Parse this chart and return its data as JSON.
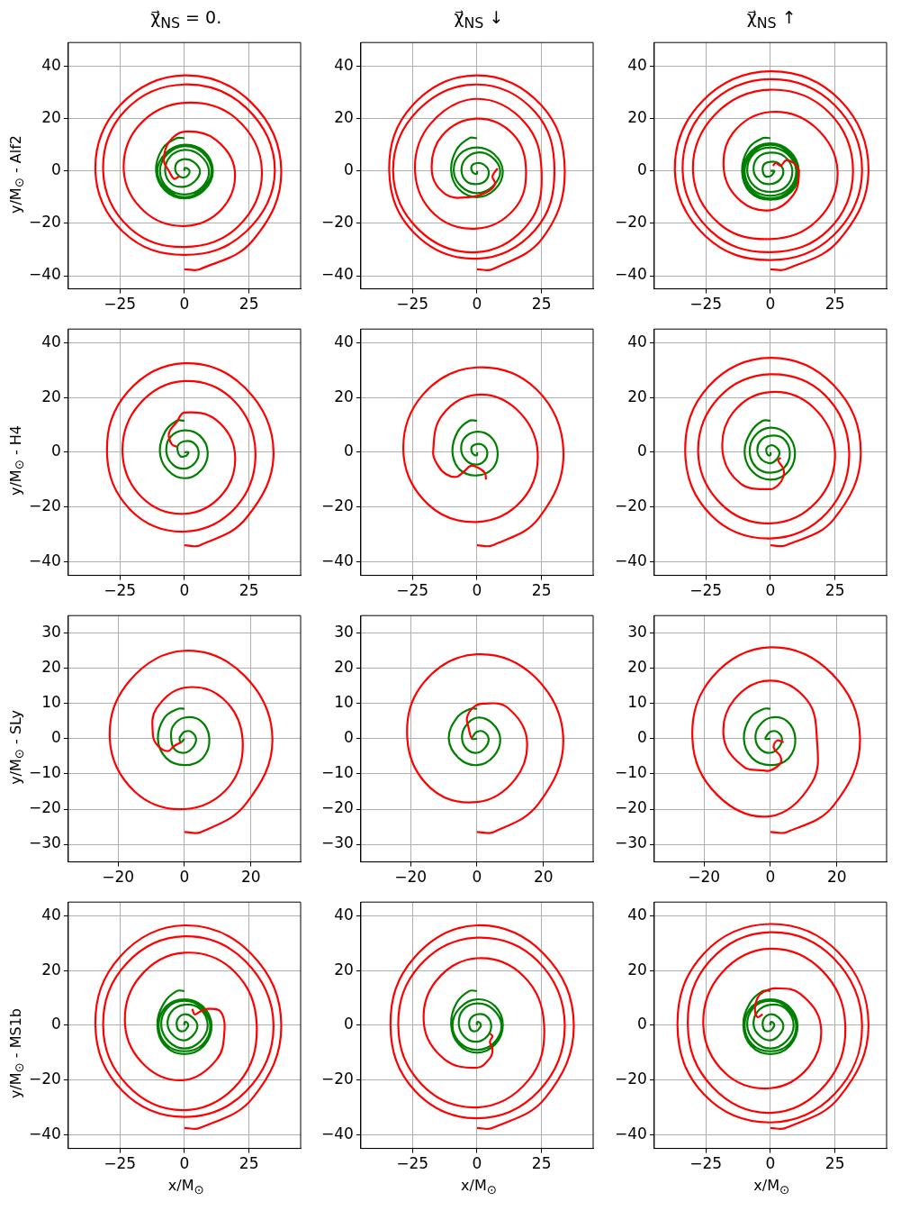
{
  "chart_data": [
    {
      "type": "line",
      "title": "χ⃗$_{NS}$ = 0.",
      "ylabel": "y/M$_{⊙}$ - Alf2",
      "xlim": [
        -45,
        45
      ],
      "ylim": [
        -45,
        49
      ],
      "xticks": [
        -25,
        0,
        25
      ],
      "yticks": [
        -40,
        -20,
        0,
        20,
        40
      ],
      "grid": true,
      "series": [
        {
          "color": "#ff0000",
          "x": [
            0,
            6,
            26.5,
            37.5,
            26,
            0,
            -25,
            -34.5,
            -23.5,
            0,
            23.5,
            35,
            24,
            0,
            -23,
            -31.5,
            -21.5,
            0,
            21,
            30,
            20,
            0,
            -17.5,
            -23.5,
            -15.5,
            0,
            14.5,
            19.5,
            12,
            0,
            -6,
            -8,
            -6,
            -4,
            -2
          ],
          "values": [
            -37.5,
            -37.5,
            -26.5,
            0,
            26,
            36.5,
            25,
            0,
            -23.5,
            -32,
            -23.5,
            0,
            24,
            33,
            23,
            0,
            -21.5,
            -29,
            -21,
            0,
            20,
            26,
            17.5,
            0,
            -15.5,
            -21,
            -14.5,
            0,
            12,
            15,
            11,
            4,
            0,
            -3,
            -2
          ]
        },
        {
          "color": "#008000",
          "x": [
            0,
            -3,
            -8.5,
            -11,
            -7.5,
            0,
            7.5,
            11,
            7.5,
            0,
            -7,
            -10.5,
            -7,
            0,
            7,
            10.5,
            7,
            0,
            -6.5,
            -9.5,
            -6.5,
            0,
            6.5,
            9.5,
            6,
            0,
            -5.5,
            -7.5,
            -5,
            0,
            4,
            6,
            3.5,
            0,
            -3,
            -3.5,
            -2,
            0,
            1.5,
            2,
            1,
            0,
            0
          ],
          "values": [
            12.5,
            12.5,
            8.5,
            0,
            -7.5,
            -10.5,
            -7.5,
            0,
            7.5,
            10,
            7,
            0,
            -7,
            -10,
            -7,
            0,
            7,
            9.5,
            6.5,
            0,
            -6.5,
            -9,
            -6.5,
            0,
            6,
            8,
            5.5,
            0,
            -5,
            -6,
            -4,
            0,
            3.5,
            4.5,
            3,
            0,
            -2,
            -2.5,
            -1.5,
            0,
            1,
            1,
            0
          ]
        }
      ]
    },
    {
      "type": "line",
      "title": "χ⃗$_{NS}$ ↓",
      "xlim": [
        -45,
        45
      ],
      "ylim": [
        -45,
        49
      ],
      "xticks": [
        -25,
        0,
        25
      ],
      "yticks": [
        -40,
        -20,
        0,
        20,
        40
      ],
      "grid": true,
      "series": [
        {
          "color": "#ff0000",
          "x": [
            0,
            6,
            25.5,
            34,
            25,
            0,
            -25,
            -34,
            -24,
            0,
            22.5,
            30,
            22.5,
            0,
            -23,
            -32.5,
            -22.5,
            0,
            20,
            25,
            18.5,
            0,
            -18,
            -24,
            -16.5,
            0,
            14.5,
            19,
            14,
            0,
            -13.5,
            -17.5,
            -12,
            -3,
            4,
            7,
            6,
            8
          ],
          "values": [
            -37.5,
            -37.5,
            -25.5,
            0,
            25,
            36.5,
            25,
            0,
            -24,
            -33.5,
            -22.5,
            0,
            22.5,
            33,
            23,
            0,
            -22.5,
            -31,
            -20,
            0,
            18.5,
            27.5,
            18,
            0,
            -16.5,
            -22,
            -14.5,
            0,
            14,
            20,
            13.5,
            0,
            -9,
            -10,
            -8,
            -5,
            -2,
            1
          ]
        },
        {
          "color": "#008000",
          "x": [
            0,
            -3,
            -8,
            -10,
            -7,
            0,
            7,
            10,
            6.5,
            0,
            -6.5,
            -9,
            -6,
            0,
            6,
            9,
            5.5,
            0,
            -4.5,
            -6,
            -4,
            0,
            3.5,
            4.5,
            2.5,
            0,
            -2,
            -2,
            -1,
            0,
            0
          ],
          "values": [
            12.5,
            12.5,
            8,
            0,
            -7,
            -10,
            -7,
            0,
            6.5,
            9,
            6.5,
            0,
            -6,
            -8.5,
            -6,
            0,
            5.5,
            7,
            4.5,
            0,
            -4,
            -5,
            -3.5,
            0,
            2.5,
            3,
            2,
            0,
            -1,
            -1,
            0
          ]
        }
      ]
    },
    {
      "type": "line",
      "title": "χ⃗$_{NS}$ ↑",
      "xlim": [
        -45,
        45
      ],
      "ylim": [
        -45,
        49
      ],
      "xticks": [
        -25,
        0,
        25
      ],
      "yticks": [
        -40,
        -20,
        0,
        20,
        40
      ],
      "grid": true,
      "series": [
        {
          "color": "#ff0000",
          "x": [
            0,
            6,
            26.5,
            38,
            27,
            0,
            -26.5,
            -37,
            -25,
            0,
            24.5,
            35.5,
            25,
            0,
            -24.5,
            -34,
            -23,
            0,
            22.5,
            32,
            22.5,
            0,
            -21.5,
            -30,
            -20,
            0,
            18.5,
            26,
            17,
            0,
            -14.5,
            -18,
            -11.5,
            0,
            9,
            11,
            9,
            6,
            4,
            2,
            1
          ],
          "values": [
            -37.5,
            -37.5,
            -26.5,
            0,
            27,
            38,
            26.5,
            0,
            -25,
            -34,
            -24.5,
            0,
            25,
            35,
            24.5,
            0,
            -23,
            -31,
            -22.5,
            0,
            22.5,
            31,
            21.5,
            0,
            -20,
            -26,
            -18.5,
            0,
            17,
            22.5,
            14.5,
            0,
            -11.5,
            -15,
            -9,
            0,
            3,
            4,
            2,
            3,
            2
          ]
        },
        {
          "color": "#008000",
          "x": [
            0,
            -3,
            -8.5,
            -11,
            -8,
            0,
            8,
            11,
            7.5,
            0,
            -7.5,
            -10.5,
            -7.5,
            0,
            7.5,
            10.5,
            7,
            0,
            -7,
            -10,
            -7,
            0,
            7,
            10,
            6.5,
            0,
            -6.5,
            -9,
            -6,
            0,
            6,
            8.5,
            5.5,
            0,
            -5,
            -6.5,
            -4,
            0,
            3.5,
            5,
            3,
            0,
            -2.5,
            -3,
            -2,
            0,
            1,
            1.5,
            0
          ],
          "values": [
            12.5,
            12.5,
            8.5,
            0,
            -8,
            -11,
            -8,
            0,
            7.5,
            10.5,
            7.5,
            0,
            -7.5,
            -10.5,
            -7.5,
            0,
            7,
            10,
            7,
            0,
            -7,
            -9.5,
            -7,
            0,
            6.5,
            9,
            6.5,
            0,
            -6,
            -8,
            -6,
            0,
            5.5,
            7,
            5,
            0,
            -4,
            -5,
            -3.5,
            0,
            3,
            3.5,
            2.5,
            0,
            -2,
            -2,
            -1,
            0,
            0
          ]
        }
      ]
    },
    {
      "type": "line",
      "ylabel": "y/M$_{⊙}$ - H4",
      "xlim": [
        -45,
        45
      ],
      "ylim": [
        -45,
        45
      ],
      "xticks": [
        -25,
        0,
        25
      ],
      "yticks": [
        -40,
        -20,
        0,
        20,
        40
      ],
      "grid": true,
      "series": [
        {
          "color": "#ff0000",
          "x": [
            0,
            6,
            24,
            34.5,
            23.5,
            0,
            -22,
            -30,
            -21,
            0,
            20,
            27.5,
            19,
            0,
            -17.5,
            -24,
            -16.5,
            0,
            15,
            19.5,
            12,
            0,
            -3,
            -6,
            -5,
            -3
          ],
          "values": [
            -34,
            -34,
            -24,
            0,
            23.5,
            32.5,
            22,
            0,
            -21,
            -29,
            -20,
            0,
            19,
            26,
            17.5,
            0,
            -16.5,
            -22.5,
            -15,
            0,
            12,
            14.5,
            11,
            7,
            3,
            2
          ]
        },
        {
          "color": "#008000",
          "x": [
            0,
            -3,
            -7.5,
            -9.5,
            -6.5,
            0,
            6.5,
            9,
            6,
            0,
            -5.5,
            -7,
            -4.5,
            0,
            4,
            5.5,
            3.5,
            0,
            -2.5,
            -2.5,
            -1.5,
            0,
            1,
            1.5,
            0
          ],
          "values": [
            11.5,
            11.5,
            7.5,
            0,
            -6.5,
            -9.5,
            -6.5,
            0,
            6,
            8,
            5.5,
            0,
            -4.5,
            -6,
            -4,
            0,
            3.5,
            4,
            2.5,
            0,
            -1.5,
            -1.5,
            -1,
            0,
            0
          ]
        }
      ]
    },
    {
      "type": "line",
      "xlim": [
        -45,
        45
      ],
      "ylim": [
        -45,
        45
      ],
      "xticks": [
        -25,
        0,
        25
      ],
      "yticks": [
        -40,
        -20,
        0,
        20,
        40
      ],
      "grid": true,
      "series": [
        {
          "color": "#ff0000",
          "x": [
            0,
            6,
            24,
            33.5,
            23,
            0,
            -21,
            -28.5,
            -19,
            0,
            17.5,
            23.5,
            15.5,
            0,
            -13.5,
            -17,
            -15,
            -12,
            -8,
            -5,
            -2.5,
            0,
            3,
            3.5
          ],
          "values": [
            -34,
            -34,
            -24,
            0,
            23,
            31,
            21,
            0,
            -19,
            -25.5,
            -17.5,
            0,
            15.5,
            21,
            13.5,
            0,
            -5,
            -8,
            -9,
            -7,
            -5,
            -5.5,
            -7.5,
            -10
          ]
        },
        {
          "color": "#008000",
          "x": [
            0,
            -3,
            -7.5,
            -9.5,
            -6.5,
            0,
            6,
            8,
            5.5,
            0,
            -5,
            -6,
            -3.5,
            0,
            3,
            4,
            2.5,
            0,
            -2,
            -2,
            -1,
            0,
            0
          ],
          "values": [
            11.5,
            11.5,
            7.5,
            0,
            -6.5,
            -8.5,
            -6,
            0,
            5.5,
            7.5,
            5,
            0,
            -3.5,
            -4.5,
            -3,
            0,
            2.5,
            3,
            2,
            0,
            -1,
            -1,
            0
          ]
        }
      ]
    },
    {
      "type": "line",
      "xlim": [
        -45,
        45
      ],
      "ylim": [
        -45,
        45
      ],
      "xticks": [
        -25,
        0,
        25
      ],
      "yticks": [
        -40,
        -20,
        0,
        20,
        40
      ],
      "grid": true,
      "series": [
        {
          "color": "#ff0000",
          "x": [
            0,
            6,
            24.5,
            35,
            24.5,
            0,
            -24,
            -33,
            -23,
            0,
            22,
            30.5,
            21,
            0,
            -20,
            -28,
            -19,
            0,
            18,
            25,
            16.5,
            0,
            -14.5,
            -18.5,
            -11.5,
            0,
            3,
            5,
            5,
            3,
            4
          ],
          "values": [
            -34,
            -34,
            -24.5,
            0,
            24.5,
            34.5,
            24,
            0,
            -23,
            -31.5,
            -22,
            0,
            21,
            28.5,
            20,
            0,
            -19,
            -26,
            -18,
            0,
            16.5,
            22,
            14.5,
            0,
            -11.5,
            -13.5,
            -12,
            -9,
            -6,
            -3,
            -2
          ]
        },
        {
          "color": "#008000",
          "x": [
            0,
            -3,
            -7.5,
            -10,
            -7,
            0,
            7,
            9.5,
            6.5,
            0,
            -6,
            -8,
            -5.5,
            0,
            5.5,
            7.5,
            5,
            0,
            -4,
            -5,
            -3,
            0,
            2.5,
            3.5,
            2,
            0,
            -1.5,
            -1.5,
            -1,
            0,
            0
          ],
          "values": [
            11.5,
            11.5,
            7.5,
            0,
            -7,
            -10,
            -7,
            0,
            6.5,
            9,
            6,
            0,
            -5.5,
            -7.5,
            -5.5,
            0,
            5,
            6,
            4,
            0,
            -3,
            -4,
            -2.5,
            0,
            2,
            2.5,
            1.5,
            0,
            -1,
            -1,
            0
          ]
        }
      ]
    },
    {
      "type": "line",
      "ylabel": "y/M$_{⊙}$ - SLy",
      "xlim": [
        -35,
        35
      ],
      "ylim": [
        -35,
        35
      ],
      "xticks": [
        -20,
        0,
        20
      ],
      "yticks": [
        -30,
        -20,
        -10,
        0,
        10,
        20,
        30
      ],
      "grid": true,
      "series": [
        {
          "color": "#ff0000",
          "x": [
            0,
            5,
            18.5,
            26.5,
            18,
            0,
            -16.5,
            -22.5,
            -15,
            0,
            13.5,
            17.5,
            11.5,
            0,
            -8.5,
            -9.5,
            -8,
            -5,
            -3,
            -1
          ],
          "values": [
            -26.5,
            -26.5,
            -18.5,
            0,
            18,
            25,
            16.5,
            0,
            -15,
            -20,
            -13.5,
            0,
            11.5,
            14.5,
            8.5,
            1,
            -2,
            -3.5,
            -2,
            -1
          ]
        },
        {
          "color": "#008000",
          "x": [
            0,
            -2,
            -6,
            -8,
            -5.5,
            0,
            5.5,
            7.5,
            5,
            0,
            -3.5,
            -4,
            -3,
            0,
            2.5,
            3.5,
            2,
            0,
            -1,
            -1.5,
            -1,
            0
          ],
          "values": [
            8.5,
            8.5,
            6,
            0,
            -5.5,
            -7.5,
            -5.5,
            0,
            5,
            6,
            3.5,
            0,
            -3,
            -4,
            -2.5,
            0,
            2,
            2,
            1,
            0,
            -1,
            0
          ]
        }
      ]
    },
    {
      "type": "line",
      "xlim": [
        -35,
        35
      ],
      "ylim": [
        -35,
        35
      ],
      "xticks": [
        -20,
        0,
        20
      ],
      "yticks": [
        -30,
        -20,
        -10,
        0,
        10,
        20,
        30
      ],
      "grid": true,
      "series": [
        {
          "color": "#ff0000",
          "x": [
            0,
            5,
            18.5,
            26,
            17.5,
            0,
            -16,
            -21,
            -14,
            0,
            11.5,
            15,
            9,
            2,
            -1,
            -3,
            -2.5,
            -2,
            -1.5
          ],
          "values": [
            -26.5,
            -26.5,
            -18.5,
            0,
            17.5,
            24,
            16,
            0,
            -14,
            -18,
            -11.5,
            0,
            9,
            10,
            9,
            6,
            3,
            1,
            0
          ]
        },
        {
          "color": "#008000",
          "x": [
            0,
            -2,
            -6,
            -8.5,
            -5.5,
            0,
            5,
            7,
            4.5,
            0,
            -3.5,
            -4.5,
            -3,
            0,
            2.5,
            3.5,
            2,
            0,
            -1,
            -1.5,
            0
          ],
          "values": [
            8.5,
            8.5,
            6,
            0,
            -5.5,
            -7.5,
            -5,
            0,
            4.5,
            6,
            3.5,
            0,
            -3,
            -4,
            -2.5,
            0,
            2,
            2,
            1,
            0,
            0
          ]
        }
      ]
    },
    {
      "type": "line",
      "xlim": [
        -35,
        35
      ],
      "ylim": [
        -35,
        35
      ],
      "xticks": [
        -20,
        0,
        20
      ],
      "yticks": [
        -30,
        -20,
        -10,
        0,
        10,
        20,
        30
      ],
      "grid": true,
      "series": [
        {
          "color": "#ff0000",
          "x": [
            0,
            5,
            19,
            27,
            18.5,
            0,
            -17.5,
            -23.5,
            -16,
            0,
            12.5,
            14,
            11,
            0,
            -11,
            -14,
            -8,
            -2,
            0,
            3,
            3,
            1,
            2,
            4
          ],
          "values": [
            -26.5,
            -26.5,
            -19,
            0,
            18.5,
            26,
            17.5,
            0,
            -16,
            -22,
            -12.5,
            0,
            11,
            16.5,
            11,
            0,
            -8,
            -9,
            -9,
            -7,
            -5,
            -2.5,
            -0.5,
            -1
          ]
        },
        {
          "color": "#008000",
          "x": [
            0,
            -2,
            -6,
            -8,
            -5.5,
            0,
            5.5,
            7.5,
            5,
            0,
            -3.5,
            -4.5,
            -3,
            0,
            2.5,
            3.5,
            2,
            0,
            -1,
            -1.5,
            0
          ],
          "values": [
            8.5,
            8.5,
            6,
            0,
            -5.5,
            -7.5,
            -5.5,
            0,
            5,
            6,
            3.5,
            0,
            -3,
            -4,
            -2.5,
            0,
            2,
            2,
            1,
            0,
            0
          ]
        }
      ]
    },
    {
      "type": "line",
      "ylabel": "y/M$_{⊙}$ - MS1b",
      "xlabel": "x/M$_{⊙}$",
      "xlim": [
        -45,
        45
      ],
      "ylim": [
        -45,
        45
      ],
      "xticks": [
        -25,
        0,
        25
      ],
      "yticks": [
        -40,
        -20,
        0,
        20,
        40
      ],
      "grid": true,
      "series": [
        {
          "color": "#ff0000",
          "x": [
            0,
            6,
            26.5,
            37.5,
            26,
            0,
            -25,
            -34.5,
            -24,
            0,
            24,
            34.5,
            23.5,
            0,
            -22.5,
            -31.5,
            -22,
            0,
            21,
            28,
            19.5,
            0,
            -17.5,
            -23,
            -15,
            0,
            12.5,
            15.5,
            14,
            9,
            6,
            4,
            3
          ],
          "values": [
            -37.5,
            -37.5,
            -26.5,
            0,
            26,
            36.5,
            25,
            0,
            -24,
            -33.5,
            -24,
            0,
            23.5,
            32.5,
            22.5,
            0,
            -22,
            -31,
            -21,
            0,
            19.5,
            26.5,
            17.5,
            0,
            -15,
            -20,
            -12.5,
            -2,
            5,
            6,
            5,
            4,
            6
          ]
        },
        {
          "color": "#008000",
          "x": [
            0,
            -3,
            -8,
            -10.5,
            -7.5,
            0,
            7.5,
            10.5,
            7,
            0,
            -7,
            -10,
            -7,
            0,
            7,
            10,
            6.5,
            0,
            -6.5,
            -9,
            -6,
            0,
            6,
            9,
            6,
            0,
            -5,
            -6.5,
            -4,
            0,
            3.5,
            5,
            3,
            0,
            -2.5,
            -3,
            -2,
            0,
            1,
            1.5,
            1,
            0,
            0
          ],
          "values": [
            12.5,
            12.5,
            8,
            0,
            -7.5,
            -10.5,
            -7.5,
            0,
            7,
            9.5,
            7,
            0,
            -7,
            -9.5,
            -7,
            0,
            6.5,
            9,
            6.5,
            0,
            -6,
            -8.5,
            -6,
            0,
            6,
            7.5,
            5,
            0,
            -4,
            -5.5,
            -3.5,
            0,
            3,
            4,
            2.5,
            0,
            -2,
            -2,
            -1,
            0,
            1,
            1,
            0
          ]
        }
      ]
    },
    {
      "type": "line",
      "xlabel": "x/M$_{⊙}$",
      "xlim": [
        -45,
        45
      ],
      "ylim": [
        -45,
        45
      ],
      "xticks": [
        -25,
        0,
        25
      ],
      "yticks": [
        -40,
        -20,
        0,
        20,
        40
      ],
      "grid": true,
      "series": [
        {
          "color": "#ff0000",
          "x": [
            0,
            6,
            26.5,
            37.5,
            26,
            0,
            -24.5,
            -33.5,
            -24,
            0,
            24,
            34,
            23.5,
            0,
            -22,
            -30.5,
            -21.5,
            0,
            20,
            26,
            18,
            0,
            -16,
            -20.5,
            -12.5,
            0,
            5,
            6,
            5,
            6,
            5
          ],
          "values": [
            -37.5,
            -37.5,
            -26.5,
            0,
            26,
            36.5,
            24.5,
            0,
            -24,
            -34,
            -24,
            0,
            23.5,
            32,
            22,
            0,
            -21.5,
            -30,
            -20,
            0,
            18,
            24.5,
            16,
            0,
            -12.5,
            -15.5,
            -12,
            -9,
            -6,
            -4,
            -3
          ]
        },
        {
          "color": "#008000",
          "x": [
            0,
            -3,
            -8,
            -10,
            -7,
            0,
            7,
            10,
            7,
            0,
            -6.5,
            -9.5,
            -6.5,
            0,
            6.5,
            9.5,
            6,
            0,
            -5.5,
            -7,
            -4.5,
            0,
            4,
            5.5,
            3.5,
            0,
            -2.5,
            -3,
            -2,
            0,
            1,
            1.5,
            1,
            0,
            0
          ],
          "values": [
            12.5,
            12.5,
            8,
            0,
            -7,
            -10,
            -7,
            0,
            7,
            9.5,
            6.5,
            0,
            -6.5,
            -9,
            -6.5,
            0,
            6,
            8,
            5.5,
            0,
            -4.5,
            -6,
            -4,
            0,
            3.5,
            4,
            2.5,
            0,
            -2,
            -2,
            -1,
            0,
            1,
            1,
            0
          ]
        }
      ]
    },
    {
      "type": "line",
      "xlabel": "x/M$_{⊙}$",
      "xlim": [
        -45,
        45
      ],
      "ylim": [
        -45,
        45
      ],
      "xticks": [
        -25,
        0,
        25
      ],
      "yticks": [
        -40,
        -20,
        0,
        20,
        40
      ],
      "grid": true,
      "series": [
        {
          "color": "#ff0000",
          "x": [
            0,
            6,
            26.5,
            38,
            26.5,
            0,
            -26,
            -36,
            -25.5,
            0,
            25,
            35.5,
            24.5,
            0,
            -23.5,
            -32,
            -22.5,
            0,
            21.5,
            29,
            20,
            0,
            -19,
            -26,
            -17.5,
            0,
            15,
            19.5,
            11.5,
            2,
            -3,
            -5,
            -6,
            -5,
            -3
          ],
          "values": [
            -37.5,
            -37.5,
            -26.5,
            0,
            26.5,
            37,
            26,
            0,
            -25.5,
            -35.5,
            -25,
            0,
            24.5,
            34,
            23.5,
            0,
            -22.5,
            -32,
            -21.5,
            0,
            20,
            28,
            19,
            0,
            -17.5,
            -23,
            -15,
            0,
            11.5,
            13.5,
            12,
            10,
            6,
            3,
            4
          ]
        },
        {
          "color": "#008000",
          "x": [
            0,
            -3,
            -8,
            -10.5,
            -7.5,
            0,
            7.5,
            10.5,
            7,
            0,
            -7,
            -10,
            -7,
            0,
            7,
            10,
            6.5,
            0,
            -6.5,
            -9,
            -6,
            0,
            6,
            9,
            6,
            0,
            -5,
            -6.5,
            -4,
            0,
            3.5,
            5,
            3,
            0,
            -2.5,
            -3,
            -2,
            0,
            1,
            1.5,
            1,
            0,
            0
          ],
          "values": [
            12.5,
            12.5,
            8,
            0,
            -7.5,
            -10.5,
            -7.5,
            0,
            7,
            9.5,
            7,
            0,
            -7,
            -9.5,
            -7,
            0,
            6.5,
            9,
            6.5,
            0,
            -6,
            -8.5,
            -6,
            0,
            6,
            7.5,
            5,
            0,
            -4,
            -5.5,
            -3.5,
            0,
            3,
            4,
            2.5,
            0,
            -2,
            -2,
            -1,
            0,
            1,
            1,
            0
          ]
        }
      ]
    }
  ]
}
